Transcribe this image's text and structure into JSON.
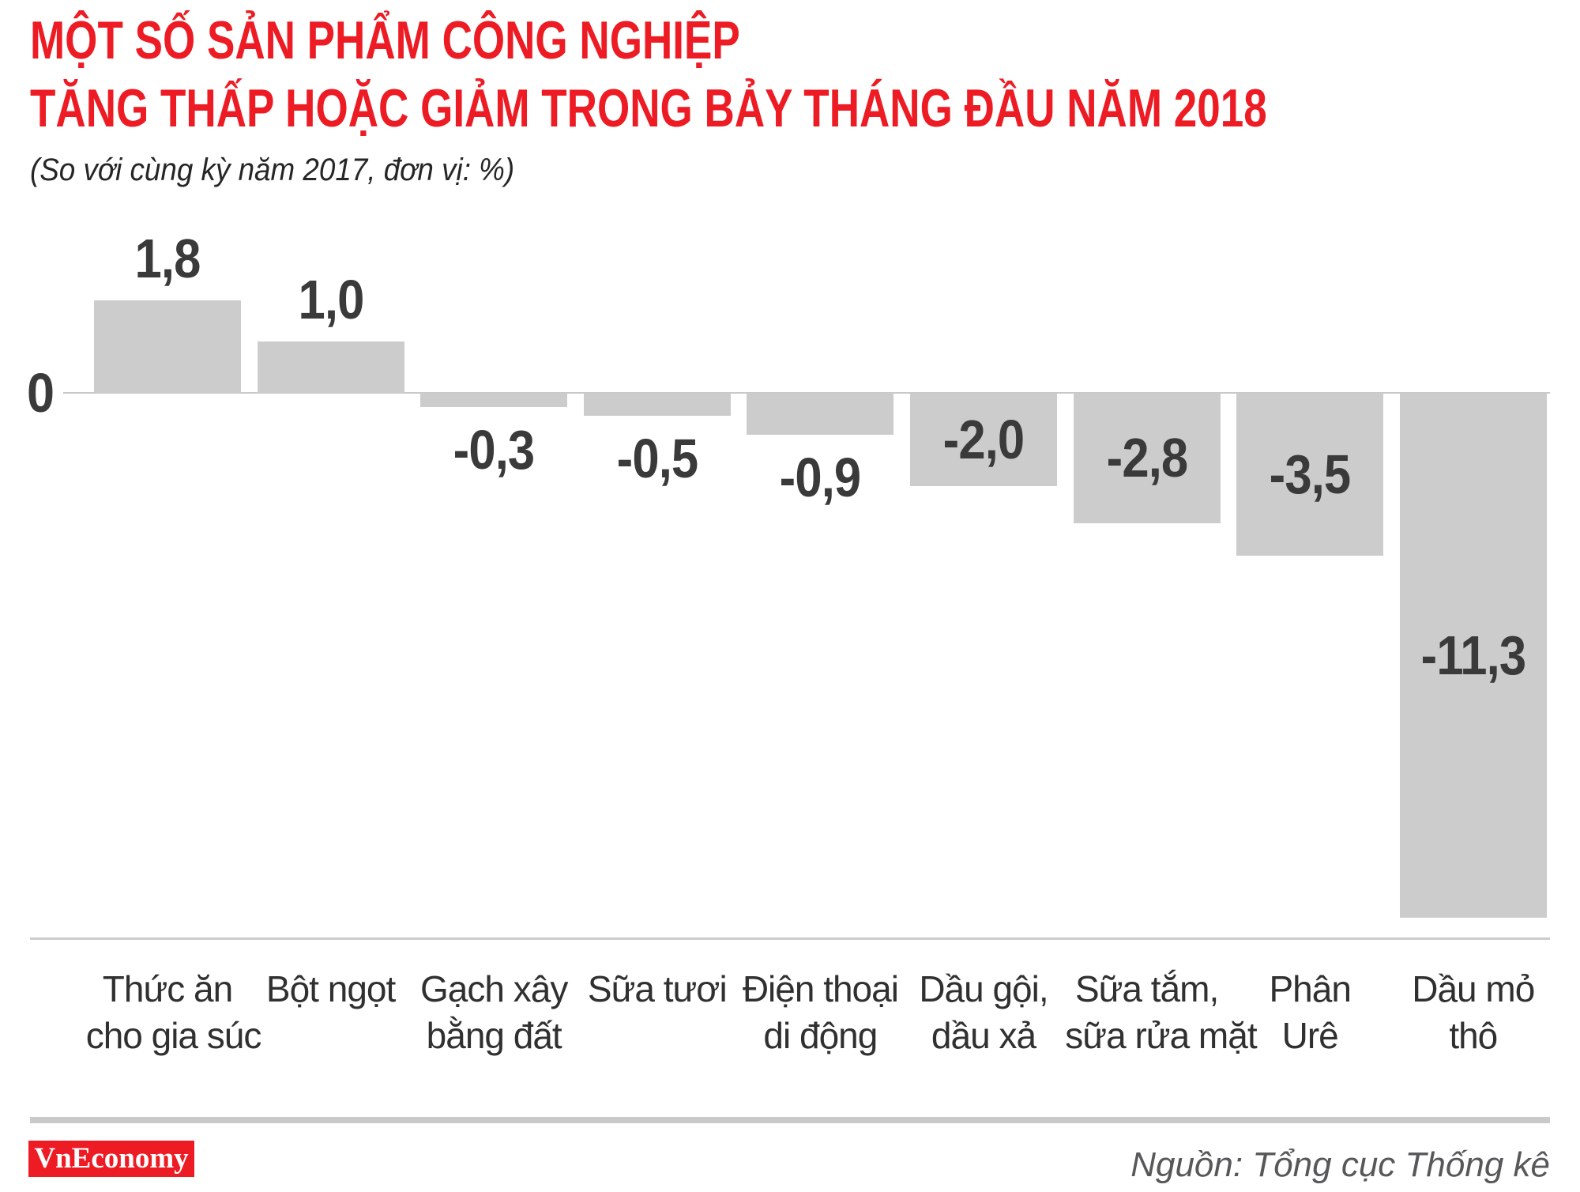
{
  "title": {
    "line1": "MỘT SỐ SẢN PHẨM CÔNG NGHIỆP",
    "line2": "TĂNG THẤP HOẶC GIẢM TRONG BẢY THÁNG ĐẦU NĂM 2018"
  },
  "subtitle": "(So với cùng kỳ năm 2017, đơn vị: %)",
  "axis": {
    "zero_label": "0"
  },
  "footer": {
    "logo_text": "VnEconomy",
    "source": "Nguồn: Tổng cục Thống kê"
  },
  "colors": {
    "accent_red": "#ed1c24",
    "bar_fill": "#cccccc",
    "value_label": "#3a3a3a",
    "axis_line": "#c9c9c9",
    "source_text": "#58585a"
  },
  "chart_data": {
    "type": "bar",
    "title": "MỘT SỐ SẢN PHẨM CÔNG NGHIỆP TĂNG THẤP HOẶC GIẢM TRONG BẢY THÁNG ĐẦU NĂM 2018",
    "subtitle": "(So với cùng kỳ năm 2017, đơn vị: %)",
    "unit": "%",
    "baseline": 0,
    "grid": false,
    "legend": false,
    "categories": [
      [
        "Thức ăn",
        "cho gia súc"
      ],
      [
        "Bột ngọt"
      ],
      [
        "Gạch xây",
        "bằng đất"
      ],
      [
        "Sữa tươi"
      ],
      [
        "Điện thoại",
        "di động"
      ],
      [
        "Dầu gội,",
        "dầu xả"
      ],
      [
        "Sữa tắm,",
        "sữa rửa mặt"
      ],
      [
        "Phân",
        "Urê"
      ],
      [
        "Dầu mỏ",
        "thô"
      ]
    ],
    "values": [
      1.8,
      1.0,
      -0.3,
      -0.5,
      -0.9,
      -2.0,
      -2.8,
      -3.5,
      -11.3
    ],
    "value_labels": [
      "1,8",
      "1,0",
      "-0,3",
      "-0,5",
      "-0,9",
      "-2,0",
      "-2,8",
      "-3,5",
      "-11,3"
    ],
    "source": "Nguồn: Tổng cục Thống kê"
  }
}
